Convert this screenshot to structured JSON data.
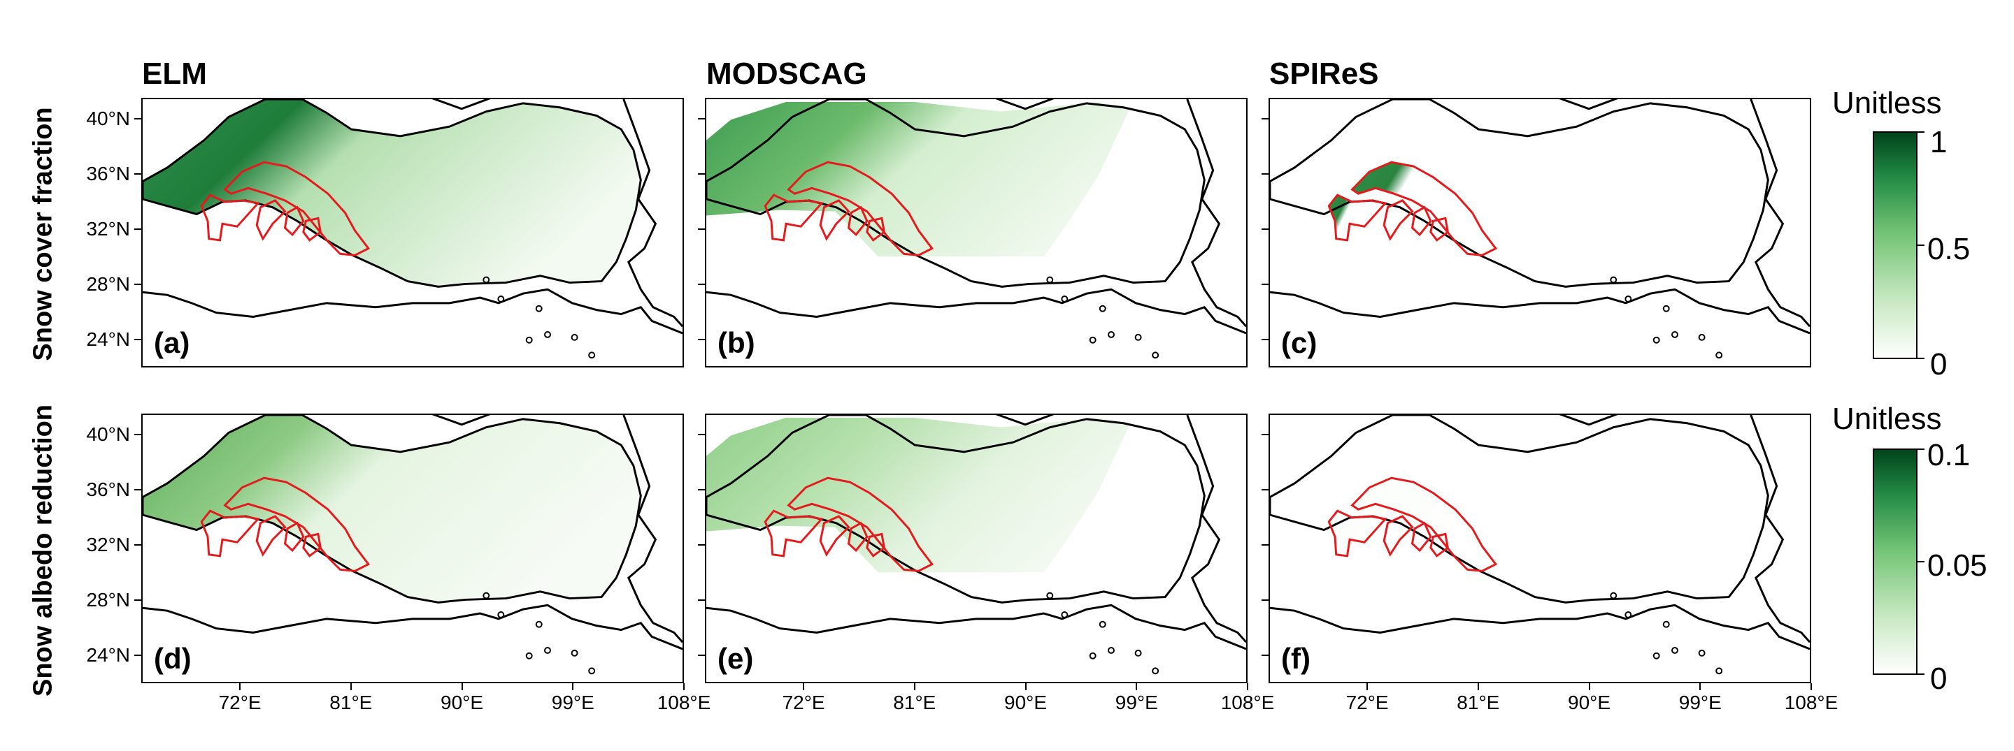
{
  "columns": [
    {
      "title": "ELM"
    },
    {
      "title": "MODSCAG"
    },
    {
      "title": "SPIReS"
    }
  ],
  "rows": [
    {
      "label": "Snow cover fraction"
    },
    {
      "label": "Snow albedo reduction"
    }
  ],
  "panels": [
    {
      "label": "(a)",
      "variable": "snow-cover-fraction",
      "dataset": "ELM"
    },
    {
      "label": "(b)",
      "variable": "snow-cover-fraction",
      "dataset": "MODSCAG"
    },
    {
      "label": "(c)",
      "variable": "snow-cover-fraction",
      "dataset": "SPIReS"
    },
    {
      "label": "(d)",
      "variable": "snow-albedo-reduction",
      "dataset": "ELM"
    },
    {
      "label": "(e)",
      "variable": "snow-albedo-reduction",
      "dataset": "MODSCAG"
    },
    {
      "label": "(f)",
      "variable": "snow-albedo-reduction",
      "dataset": "SPIReS"
    }
  ],
  "axes": {
    "lat_ticks": [
      "40°N",
      "36°N",
      "32°N",
      "28°N",
      "24°N"
    ],
    "lat_values": [
      40,
      36,
      32,
      28,
      24
    ],
    "lon_ticks": [
      "72°E",
      "81°E",
      "90°E",
      "99°E",
      "108°E"
    ],
    "lon_values": [
      72,
      81,
      90,
      99,
      108
    ],
    "lat_range": [
      22,
      41.5
    ],
    "lon_range": [
      64,
      108
    ]
  },
  "colorbars": [
    {
      "title": "Unitless",
      "ticks": [
        "1",
        "0.5",
        "0"
      ],
      "range": [
        0,
        1
      ]
    },
    {
      "title": "Unitless",
      "ticks": [
        "0.1",
        "0.05",
        "0"
      ],
      "range": [
        0,
        0.1
      ]
    }
  ],
  "colors": {
    "low": "#ffffff",
    "high": "#00441b",
    "outline": "#000000",
    "region": "#e41a1c"
  }
}
